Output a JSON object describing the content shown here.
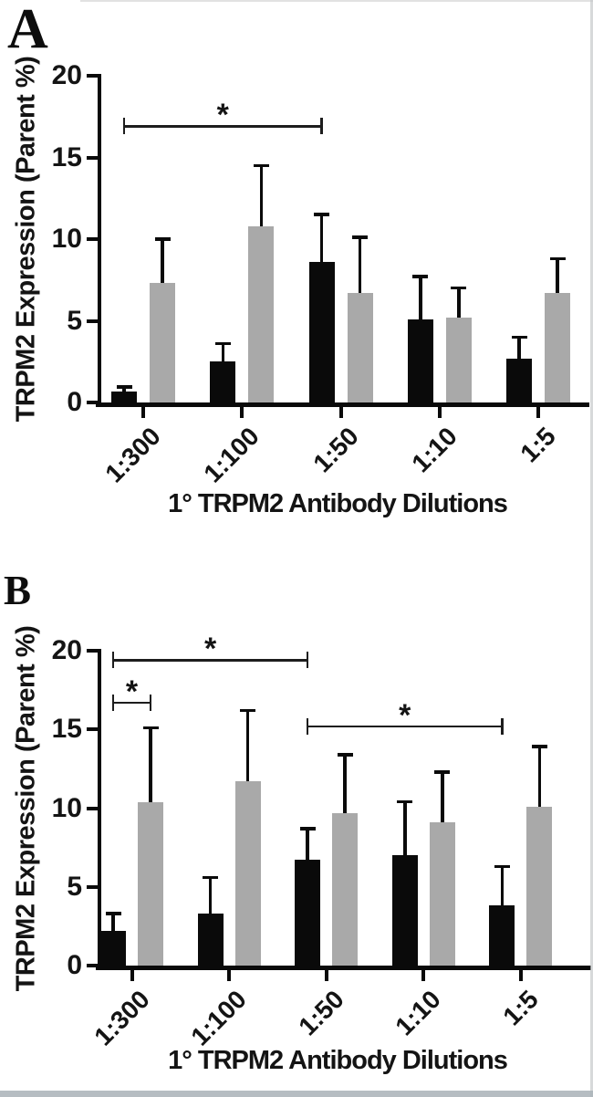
{
  "figure": {
    "background": "#ffffff",
    "bar_color_black": "#0a0a0a",
    "bar_color_gray": "#a9a9a9",
    "axis_color": "#0a0a0a"
  },
  "chart_data": [
    {
      "type": "bar",
      "panel_label": "A",
      "xlabel": "1° TRPM2 Antibody Dilutions",
      "ylabel": "TRPM2 Expression (Parent %)",
      "categories": [
        "1:300",
        "1:100",
        "1:50",
        "1:10",
        "1:5"
      ],
      "yticks": [
        0,
        5,
        10,
        15,
        20
      ],
      "ylim": [
        0,
        20
      ],
      "grid": false,
      "legend": "none",
      "series": [
        {
          "name": "black",
          "color": "#0a0a0a",
          "values": [
            0.65,
            2.5,
            8.6,
            5.1,
            2.7
          ],
          "errors_upper": [
            0.3,
            1.1,
            2.9,
            2.6,
            1.3
          ]
        },
        {
          "name": "gray",
          "color": "#a9a9a9",
          "values": [
            7.3,
            10.8,
            6.7,
            5.2,
            6.7
          ],
          "errors_upper": [
            2.7,
            3.7,
            3.4,
            1.8,
            2.1
          ]
        }
      ],
      "significance_brackets": [
        {
          "from_group": 0,
          "from_bar": 0,
          "to_group": 2,
          "to_bar": 0,
          "y": 16.9,
          "label": "*"
        }
      ]
    },
    {
      "type": "bar",
      "panel_label": "B",
      "xlabel": "1° TRPM2 Antibody Dilutions",
      "ylabel": "TRPM2 Expression (Parent %)",
      "categories": [
        "1:300",
        "1:100",
        "1:50",
        "1:10",
        "1:5"
      ],
      "yticks": [
        0,
        5,
        10,
        15,
        20
      ],
      "ylim": [
        0,
        20
      ],
      "grid": false,
      "legend": "none",
      "series": [
        {
          "name": "black",
          "color": "#0a0a0a",
          "values": [
            2.2,
            3.3,
            6.7,
            7.0,
            3.8
          ],
          "errors_upper": [
            1.1,
            2.3,
            2.0,
            3.4,
            2.5
          ]
        },
        {
          "name": "gray",
          "color": "#a9a9a9",
          "values": [
            10.4,
            11.7,
            9.7,
            9.1,
            10.1
          ],
          "errors_upper": [
            4.7,
            4.5,
            3.7,
            3.2,
            3.8
          ]
        }
      ],
      "significance_brackets": [
        {
          "from_group": 0,
          "from_bar": 0,
          "to_group": 2,
          "to_bar": 0,
          "y": 19.4,
          "label": "*"
        },
        {
          "from_group": 0,
          "from_bar": 0,
          "to_group": 0,
          "to_bar": 1,
          "y": 16.7,
          "label": "*"
        },
        {
          "from_group": 2,
          "from_bar": 0,
          "to_group": 4,
          "to_bar": 0,
          "y": 15.2,
          "label": "*"
        }
      ]
    }
  ]
}
